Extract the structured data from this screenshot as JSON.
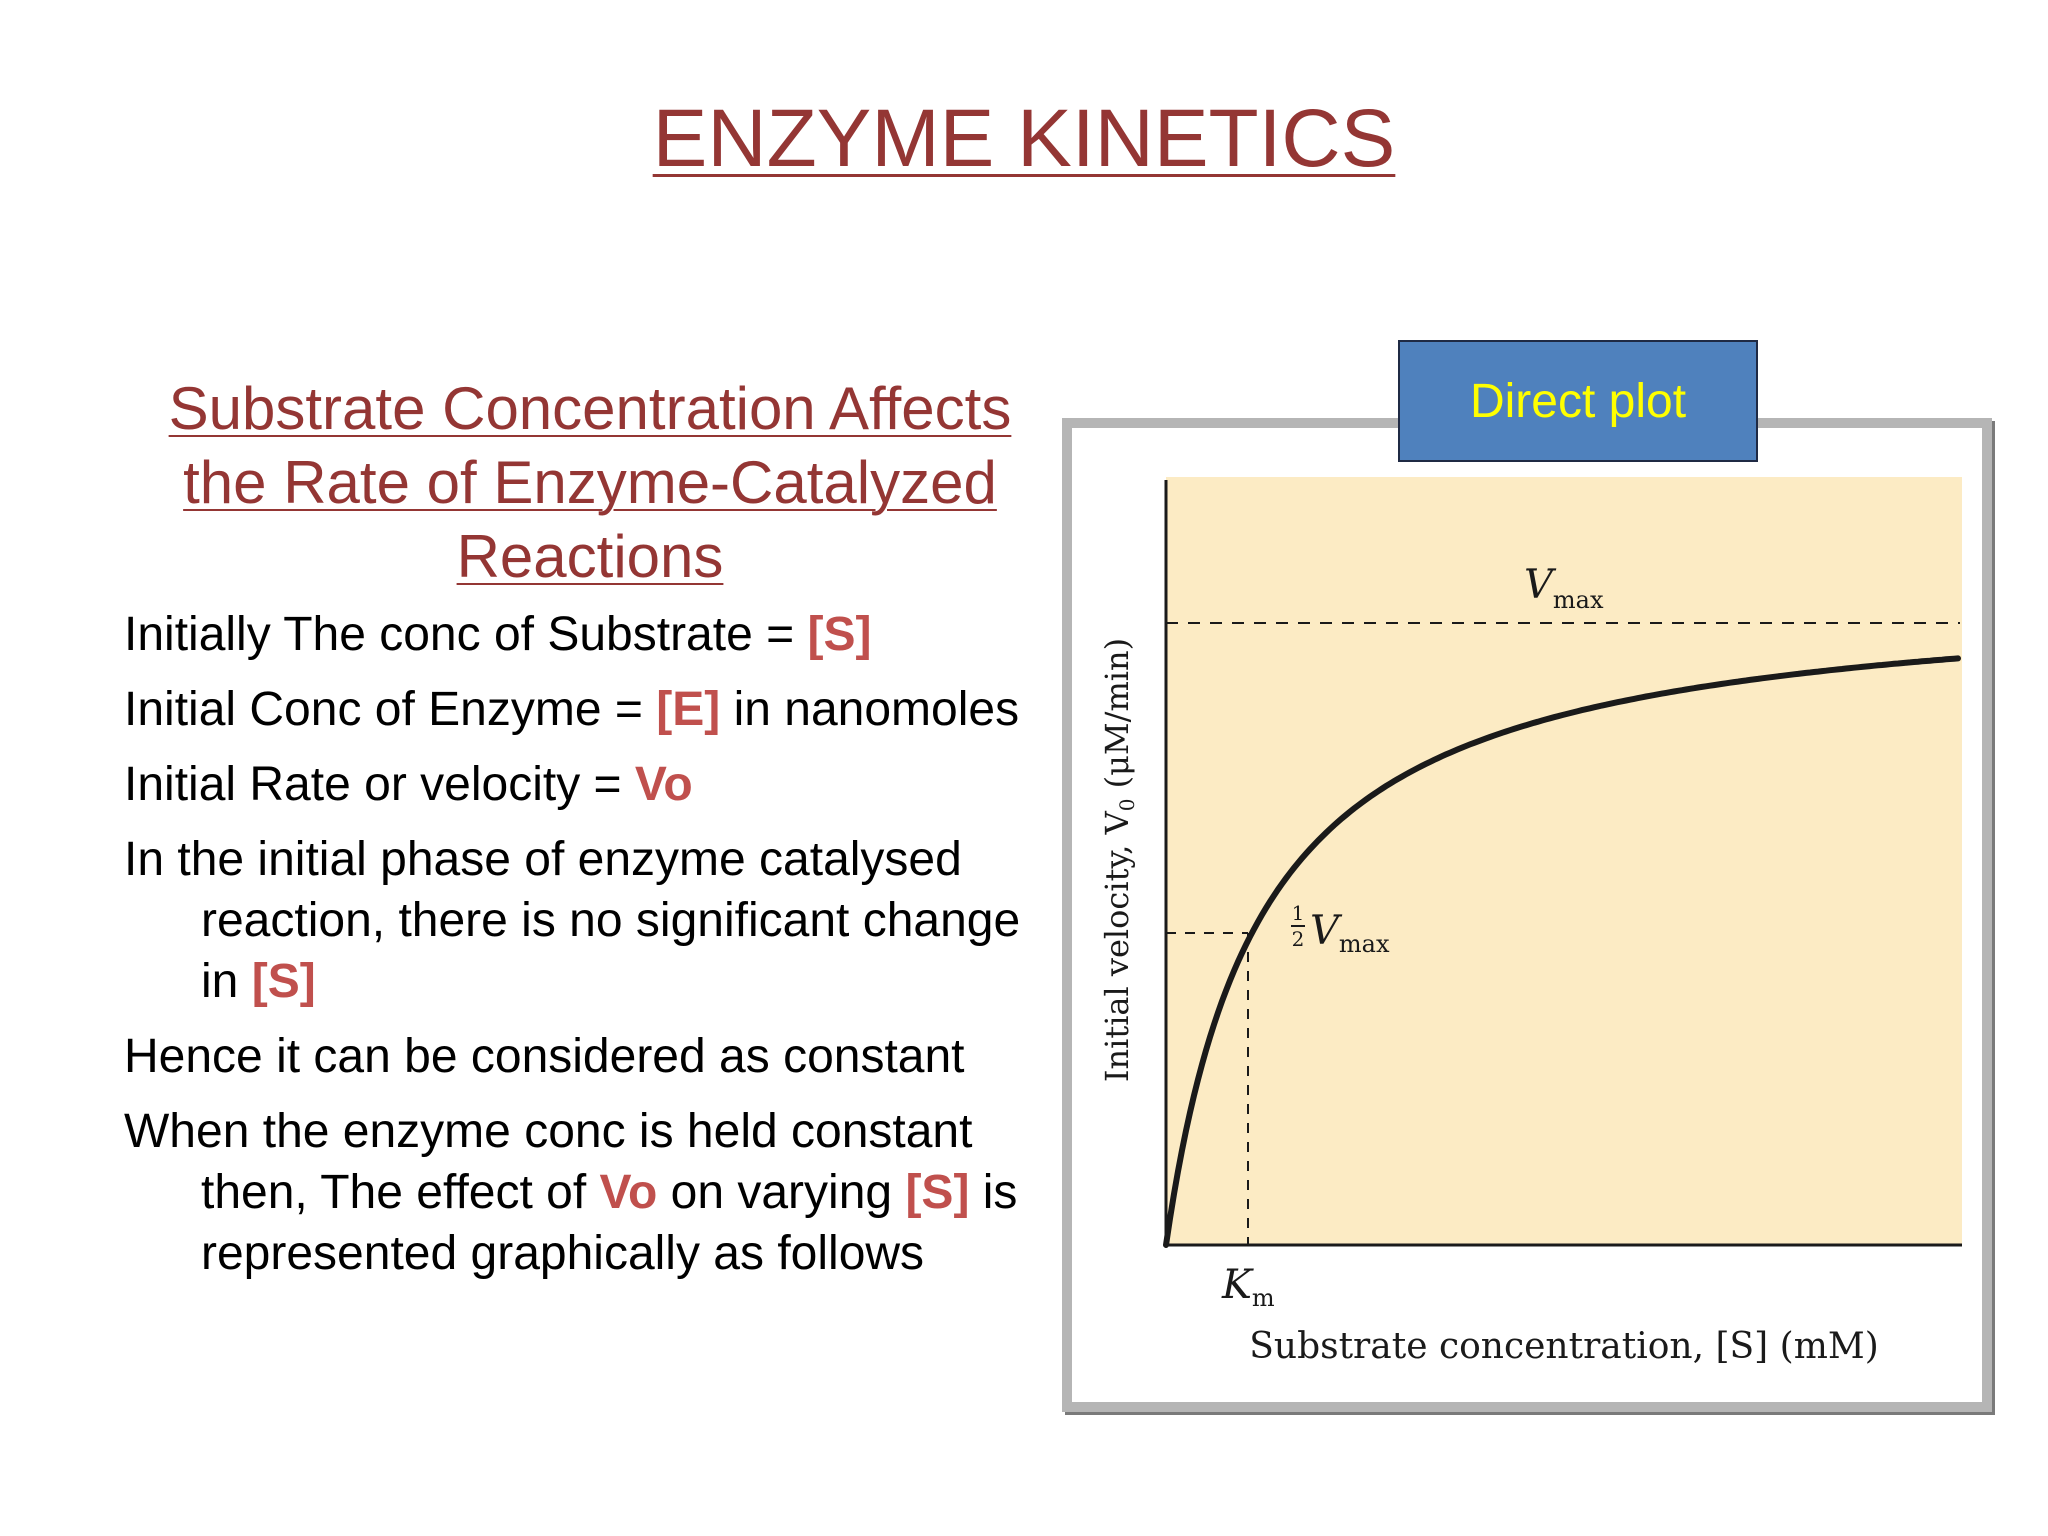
{
  "title": "ENZYME KINETICS",
  "subtitle": "Substrate Concentration Affects the Rate of Enzyme-Catalyzed Reactions",
  "bullets": [
    {
      "parts": [
        {
          "t": "Initially The conc of Substrate = "
        },
        {
          "t": "[S]",
          "hl": true
        }
      ]
    },
    {
      "parts": [
        {
          "t": "Initial Conc of Enzyme = "
        },
        {
          "t": "[E]",
          "hl": true
        },
        {
          "t": " in nanomoles"
        }
      ]
    },
    {
      "parts": [
        {
          "t": "Initial Rate or velocity = "
        },
        {
          "t": "Vo",
          "hl": true
        }
      ]
    },
    {
      "parts": [
        {
          "t": "In the initial phase of enzyme catalysed reaction, there is no significant change in "
        },
        {
          "t": "[S]",
          "hl": true
        }
      ]
    },
    {
      "parts": [
        {
          "t": "Hence it can be considered as constant"
        }
      ]
    },
    {
      "parts": [
        {
          "t": "When the enzyme conc is held constant then, The effect of "
        },
        {
          "t": "Vo",
          "hl": true
        },
        {
          "t": " on varying "
        },
        {
          "t": "[S]",
          "hl": true
        },
        {
          "t": " is represented graphically as follows"
        }
      ]
    }
  ],
  "diagram": {
    "tag": "Direct plot",
    "ylabel": "Initial velocity, V",
    "ylabel_sub": "0",
    "ylabel_unit": "(μM/min)",
    "xlabel": "Substrate concentration, [S] (mM)",
    "vmax_label": "V",
    "vmax_sub": "max",
    "half_num": "1",
    "half_den": "2",
    "half_v": "V",
    "half_sub": "max",
    "km_label": "K",
    "km_sub": "m",
    "plot_bg": "#fcebc4",
    "curve_color": "#1a1a1a"
  }
}
